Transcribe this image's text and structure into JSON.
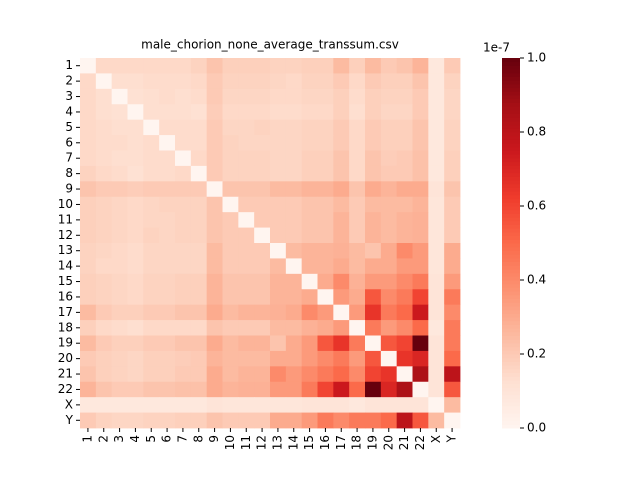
{
  "chart_data": {
    "type": "heatmap",
    "title": "male_chorion_none_average_transsum.csv",
    "rows": [
      "1",
      "2",
      "3",
      "4",
      "5",
      "6",
      "7",
      "8",
      "9",
      "10",
      "11",
      "12",
      "13",
      "14",
      "15",
      "16",
      "17",
      "18",
      "19",
      "20",
      "21",
      "22",
      "X",
      "Y"
    ],
    "columns": [
      "1",
      "2",
      "3",
      "4",
      "5",
      "6",
      "7",
      "8",
      "9",
      "10",
      "11",
      "12",
      "13",
      "14",
      "15",
      "16",
      "17",
      "18",
      "19",
      "20",
      "21",
      "22",
      "X",
      "Y"
    ],
    "values": [
      [
        0,
        0.15,
        0.15,
        0.15,
        0.15,
        0.15,
        0.15,
        0.17,
        0.22,
        0.18,
        0.18,
        0.18,
        0.17,
        0.17,
        0.18,
        0.18,
        0.25,
        0.18,
        0.25,
        0.2,
        0.22,
        0.27,
        0.08,
        0.2
      ],
      [
        0.15,
        0,
        0.13,
        0.13,
        0.14,
        0.14,
        0.14,
        0.15,
        0.2,
        0.17,
        0.17,
        0.17,
        0.16,
        0.15,
        0.17,
        0.17,
        0.2,
        0.15,
        0.2,
        0.18,
        0.18,
        0.22,
        0.08,
        0.17
      ],
      [
        0.15,
        0.13,
        0,
        0.12,
        0.13,
        0.14,
        0.13,
        0.14,
        0.2,
        0.16,
        0.16,
        0.16,
        0.15,
        0.15,
        0.16,
        0.16,
        0.18,
        0.14,
        0.18,
        0.17,
        0.17,
        0.2,
        0.08,
        0.16
      ],
      [
        0.15,
        0.13,
        0.12,
        0,
        0.13,
        0.13,
        0.13,
        0.12,
        0.19,
        0.15,
        0.15,
        0.15,
        0.14,
        0.14,
        0.15,
        0.15,
        0.18,
        0.13,
        0.18,
        0.16,
        0.16,
        0.2,
        0.08,
        0.16
      ],
      [
        0.15,
        0.14,
        0.13,
        0.13,
        0,
        0.14,
        0.14,
        0.14,
        0.2,
        0.16,
        0.16,
        0.17,
        0.16,
        0.16,
        0.17,
        0.17,
        0.2,
        0.15,
        0.2,
        0.18,
        0.18,
        0.22,
        0.08,
        0.17
      ],
      [
        0.15,
        0.14,
        0.14,
        0.13,
        0.14,
        0,
        0.14,
        0.14,
        0.2,
        0.17,
        0.16,
        0.16,
        0.16,
        0.16,
        0.17,
        0.17,
        0.2,
        0.15,
        0.2,
        0.18,
        0.18,
        0.22,
        0.08,
        0.17
      ],
      [
        0.15,
        0.14,
        0.13,
        0.13,
        0.14,
        0.14,
        0,
        0.15,
        0.2,
        0.17,
        0.17,
        0.17,
        0.16,
        0.16,
        0.18,
        0.18,
        0.22,
        0.15,
        0.22,
        0.19,
        0.2,
        0.23,
        0.08,
        0.18
      ],
      [
        0.17,
        0.15,
        0.14,
        0.12,
        0.14,
        0.14,
        0.15,
        0,
        0.2,
        0.17,
        0.17,
        0.17,
        0.16,
        0.16,
        0.18,
        0.18,
        0.22,
        0.15,
        0.22,
        0.2,
        0.2,
        0.23,
        0.08,
        0.18
      ],
      [
        0.22,
        0.2,
        0.2,
        0.19,
        0.2,
        0.2,
        0.2,
        0.2,
        0,
        0.22,
        0.22,
        0.22,
        0.25,
        0.25,
        0.27,
        0.27,
        0.3,
        0.22,
        0.3,
        0.27,
        0.3,
        0.3,
        0.1,
        0.22
      ],
      [
        0.18,
        0.17,
        0.16,
        0.15,
        0.16,
        0.17,
        0.17,
        0.17,
        0.22,
        0,
        0.2,
        0.2,
        0.2,
        0.2,
        0.22,
        0.22,
        0.25,
        0.2,
        0.25,
        0.25,
        0.25,
        0.27,
        0.09,
        0.2
      ],
      [
        0.18,
        0.17,
        0.16,
        0.15,
        0.16,
        0.16,
        0.17,
        0.17,
        0.22,
        0.2,
        0,
        0.2,
        0.2,
        0.2,
        0.22,
        0.22,
        0.27,
        0.2,
        0.27,
        0.25,
        0.27,
        0.28,
        0.09,
        0.2
      ],
      [
        0.18,
        0.17,
        0.16,
        0.15,
        0.17,
        0.16,
        0.17,
        0.17,
        0.22,
        0.2,
        0.2,
        0,
        0.2,
        0.2,
        0.22,
        0.22,
        0.27,
        0.2,
        0.27,
        0.25,
        0.27,
        0.28,
        0.09,
        0.2
      ],
      [
        0.17,
        0.16,
        0.15,
        0.14,
        0.16,
        0.16,
        0.16,
        0.16,
        0.25,
        0.2,
        0.2,
        0.2,
        0,
        0.25,
        0.27,
        0.27,
        0.28,
        0.25,
        0.22,
        0.3,
        0.4,
        0.35,
        0.09,
        0.3
      ],
      [
        0.17,
        0.15,
        0.15,
        0.14,
        0.16,
        0.16,
        0.16,
        0.16,
        0.25,
        0.2,
        0.2,
        0.2,
        0.25,
        0,
        0.27,
        0.27,
        0.3,
        0.25,
        0.3,
        0.3,
        0.35,
        0.35,
        0.09,
        0.3
      ],
      [
        0.18,
        0.17,
        0.16,
        0.15,
        0.17,
        0.17,
        0.18,
        0.18,
        0.27,
        0.22,
        0.22,
        0.22,
        0.27,
        0.27,
        0,
        0.3,
        0.4,
        0.28,
        0.35,
        0.35,
        0.4,
        0.45,
        0.1,
        0.35
      ],
      [
        0.18,
        0.17,
        0.16,
        0.15,
        0.17,
        0.17,
        0.18,
        0.18,
        0.27,
        0.22,
        0.22,
        0.22,
        0.27,
        0.27,
        0.3,
        0,
        0.35,
        0.3,
        0.55,
        0.4,
        0.45,
        0.6,
        0.1,
        0.45
      ],
      [
        0.25,
        0.2,
        0.18,
        0.18,
        0.2,
        0.2,
        0.22,
        0.22,
        0.3,
        0.25,
        0.27,
        0.27,
        0.28,
        0.3,
        0.4,
        0.35,
        0,
        0.35,
        0.65,
        0.45,
        0.5,
        0.75,
        0.1,
        0.4
      ],
      [
        0.18,
        0.15,
        0.14,
        0.13,
        0.15,
        0.15,
        0.15,
        0.15,
        0.22,
        0.2,
        0.2,
        0.2,
        0.25,
        0.25,
        0.28,
        0.3,
        0.35,
        0,
        0.45,
        0.35,
        0.4,
        0.5,
        0.08,
        0.45
      ],
      [
        0.25,
        0.2,
        0.18,
        0.18,
        0.2,
        0.2,
        0.22,
        0.22,
        0.3,
        0.25,
        0.27,
        0.27,
        0.22,
        0.3,
        0.35,
        0.55,
        0.65,
        0.45,
        0,
        0.55,
        0.6,
        1.0,
        0.1,
        0.45
      ],
      [
        0.2,
        0.18,
        0.17,
        0.16,
        0.18,
        0.18,
        0.19,
        0.2,
        0.27,
        0.25,
        0.25,
        0.25,
        0.3,
        0.3,
        0.35,
        0.4,
        0.45,
        0.35,
        0.55,
        0,
        0.65,
        0.7,
        0.1,
        0.5
      ],
      [
        0.22,
        0.18,
        0.17,
        0.16,
        0.18,
        0.18,
        0.2,
        0.2,
        0.3,
        0.25,
        0.27,
        0.27,
        0.4,
        0.35,
        0.4,
        0.45,
        0.5,
        0.4,
        0.6,
        0.65,
        0,
        0.85,
        0.1,
        0.8
      ],
      [
        0.27,
        0.22,
        0.2,
        0.2,
        0.22,
        0.22,
        0.23,
        0.23,
        0.3,
        0.27,
        0.28,
        0.28,
        0.35,
        0.35,
        0.45,
        0.6,
        0.75,
        0.5,
        1.0,
        0.7,
        0.85,
        0,
        0.1,
        0.55
      ],
      [
        0.08,
        0.08,
        0.08,
        0.08,
        0.08,
        0.08,
        0.08,
        0.08,
        0.1,
        0.09,
        0.09,
        0.09,
        0.09,
        0.09,
        0.1,
        0.1,
        0.1,
        0.08,
        0.1,
        0.1,
        0.1,
        0.1,
        0,
        0.25
      ],
      [
        0.2,
        0.17,
        0.16,
        0.16,
        0.17,
        0.17,
        0.18,
        0.18,
        0.22,
        0.2,
        0.2,
        0.2,
        0.3,
        0.3,
        0.35,
        0.45,
        0.4,
        0.45,
        0.45,
        0.5,
        0.8,
        0.55,
        0.25,
        0
      ]
    ],
    "colormap": [
      "#fff5f0",
      "#fee0d2",
      "#fcbba1",
      "#fc9272",
      "#fb6a4a",
      "#ef3b2c",
      "#cb181d",
      "#a50f15",
      "#67000d"
    ],
    "clim": [
      0,
      1.0
    ],
    "cticks": [
      {
        "value": 0,
        "label": "0.0"
      },
      {
        "value": 0.2,
        "label": "0.2"
      },
      {
        "value": 0.4,
        "label": "0.4"
      },
      {
        "value": 0.6,
        "label": "0.6"
      },
      {
        "value": 0.8,
        "label": "0.8"
      },
      {
        "value": 1.0,
        "label": "1.0"
      }
    ],
    "colorbar_offset": "1e-7"
  }
}
